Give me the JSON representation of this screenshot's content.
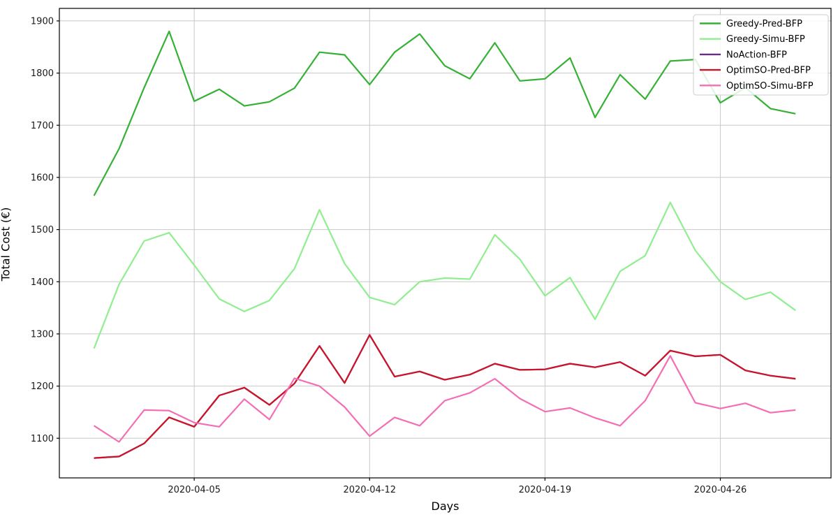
{
  "figure": {
    "xlabel": "Days",
    "ylabel": "Total Cost (€)"
  },
  "chart_data": {
    "type": "line",
    "title": "",
    "xlabel": "Days",
    "ylabel": "Total Cost (€)",
    "grid": true,
    "legend_position": "upper right",
    "x": [
      "2020-04-01",
      "2020-04-02",
      "2020-04-03",
      "2020-04-04",
      "2020-04-05",
      "2020-04-06",
      "2020-04-07",
      "2020-04-08",
      "2020-04-09",
      "2020-04-10",
      "2020-04-11",
      "2020-04-12",
      "2020-04-13",
      "2020-04-14",
      "2020-04-15",
      "2020-04-16",
      "2020-04-17",
      "2020-04-18",
      "2020-04-19",
      "2020-04-20",
      "2020-04-21",
      "2020-04-22",
      "2020-04-23",
      "2020-04-24",
      "2020-04-25",
      "2020-04-26",
      "2020-04-27",
      "2020-04-28",
      "2020-04-29"
    ],
    "x_tick_labels": [
      "2020-04-05",
      "2020-04-12",
      "2020-04-19",
      "2020-04-26"
    ],
    "x_tick_indices": [
      4,
      11,
      18,
      25
    ],
    "y_ticks": [
      1100,
      1200,
      1300,
      1400,
      1500,
      1600,
      1700,
      1800,
      1900
    ],
    "ylim": [
      1024,
      1924
    ],
    "xlim_day_index": [
      -1.383,
      29.417
    ],
    "series": [
      {
        "name": "Greedy-Pred-BFP",
        "color": "#35b135",
        "values": [
          1565,
          1655,
          1772,
          1880,
          1746,
          1769,
          1737,
          1745,
          1771,
          1840,
          1835,
          1778,
          1840,
          1875,
          1814,
          1789,
          1858,
          1785,
          1789,
          1829,
          1715,
          1797,
          1750,
          1823,
          1826,
          1743,
          1772,
          1732,
          1722
        ]
      },
      {
        "name": "Greedy-Simu-BFP",
        "color": "#90ee90",
        "values": [
          1272,
          1395,
          1478,
          1494,
          1432,
          1367,
          1343,
          1364,
          1425,
          1538,
          1435,
          1370,
          1356,
          1400,
          1407,
          1405,
          1490,
          1443,
          1373,
          1408,
          1328,
          1420,
          1450,
          1552,
          1460,
          1400,
          1366,
          1380,
          1345
        ]
      },
      {
        "name": "NoAction-BFP",
        "color": "#6a2c8c",
        "note": "line not separately visible in plot; coincides with / hidden behind OptimSO-Pred-BFP",
        "values": [
          1062,
          1065,
          1090,
          1140,
          1122,
          1182,
          1197,
          1164,
          1205,
          1277,
          1206,
          1298,
          1218,
          1228,
          1212,
          1222,
          1243,
          1231,
          1232,
          1243,
          1236,
          1246,
          1220,
          1268,
          1257,
          1260,
          1230,
          1220,
          1214
        ]
      },
      {
        "name": "OptimSO-Pred-BFP",
        "color": "#cc1428",
        "values": [
          1062,
          1065,
          1090,
          1140,
          1122,
          1182,
          1197,
          1164,
          1205,
          1277,
          1206,
          1298,
          1218,
          1228,
          1212,
          1222,
          1243,
          1231,
          1232,
          1243,
          1236,
          1246,
          1220,
          1268,
          1257,
          1260,
          1230,
          1220,
          1214
        ]
      },
      {
        "name": "OptimSO-Simu-BFP",
        "color": "#f46eb4",
        "values": [
          1124,
          1093,
          1154,
          1153,
          1130,
          1122,
          1175,
          1136,
          1215,
          1200,
          1160,
          1104,
          1140,
          1124,
          1172,
          1187,
          1214,
          1176,
          1151,
          1158,
          1139,
          1124,
          1172,
          1258,
          1168,
          1157,
          1167,
          1149,
          1154
        ]
      }
    ]
  },
  "style": {
    "grid_color": "#c8c8c8",
    "spine_color": "#000000",
    "tick_label_color": "#1a1a1a",
    "legend_border_color": "#cccccc",
    "background": "#ffffff"
  }
}
